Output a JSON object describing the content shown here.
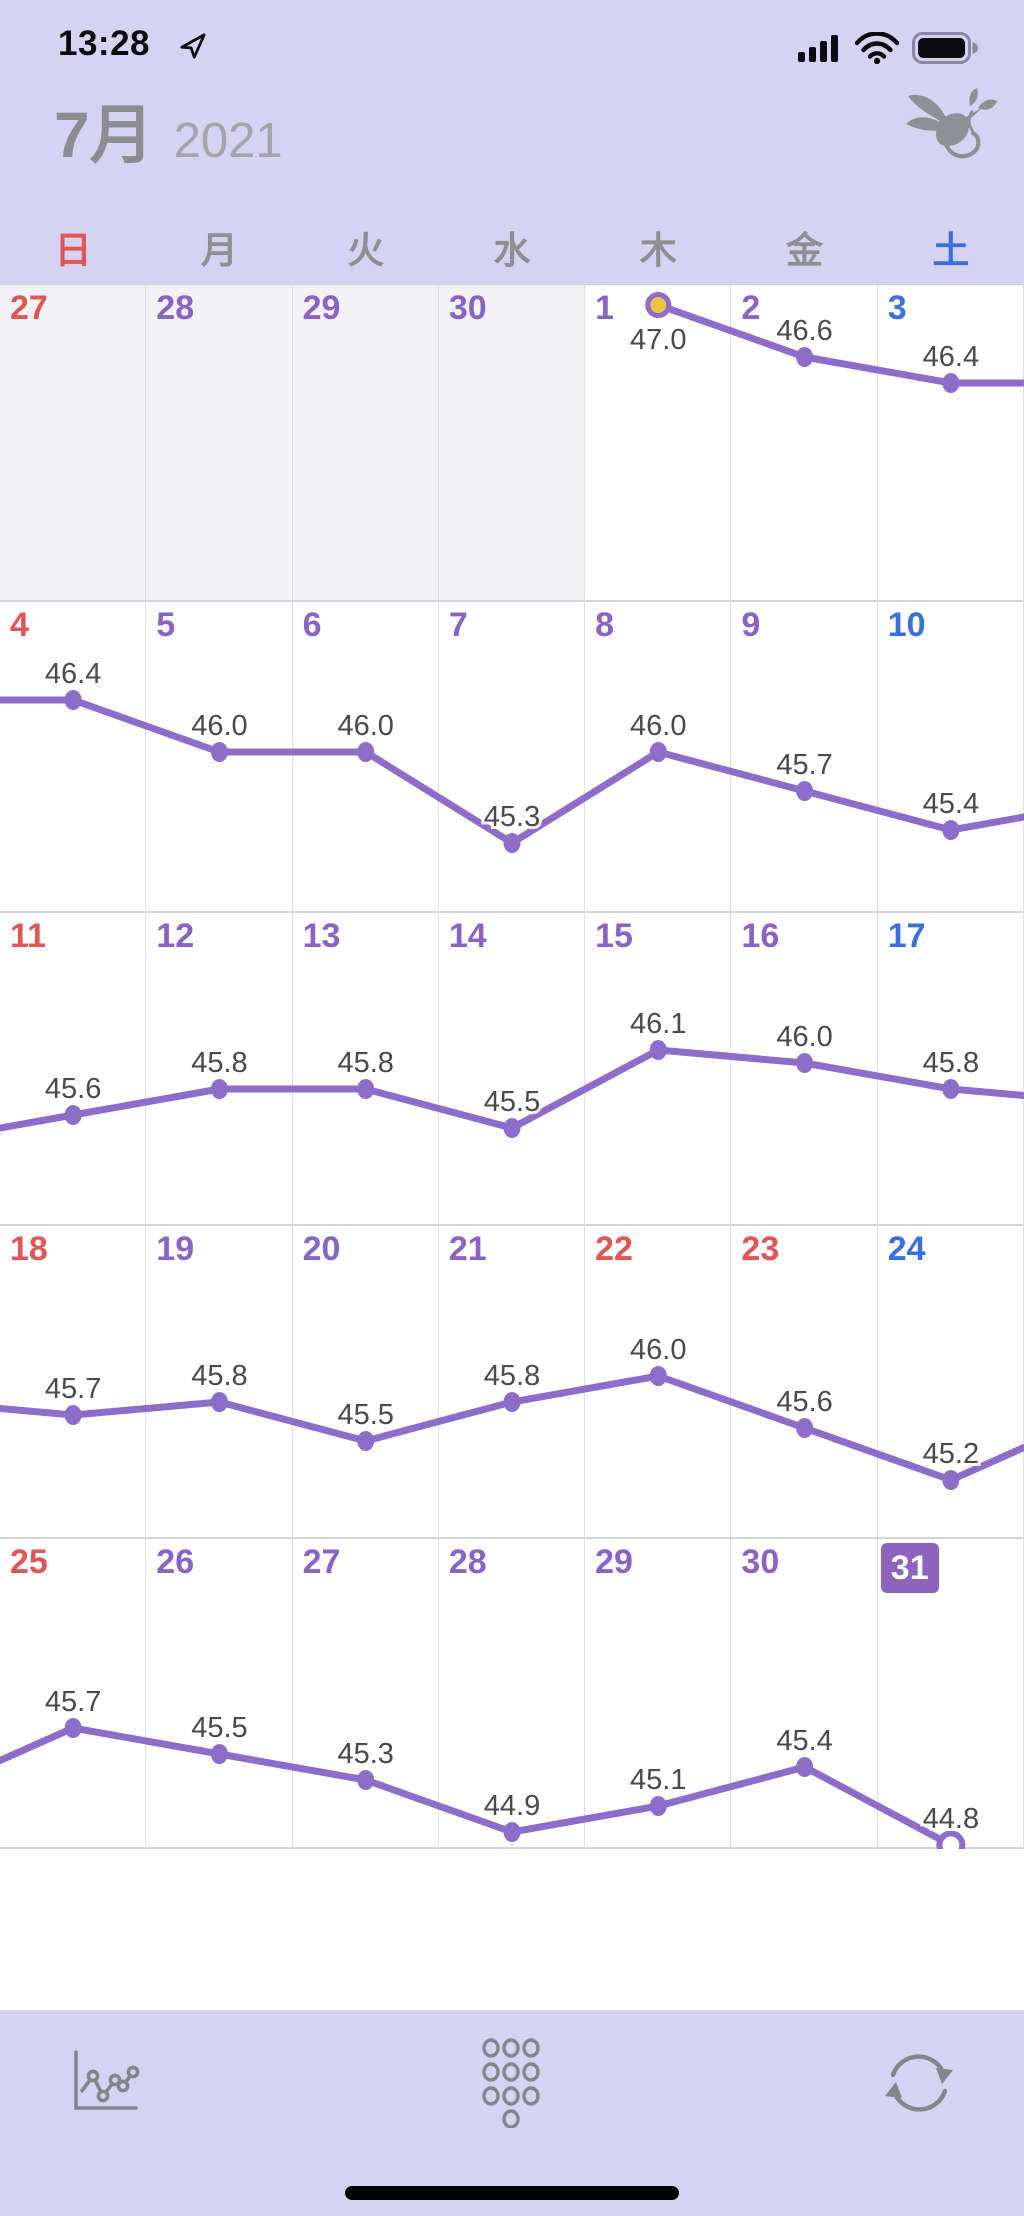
{
  "status_bar": {
    "time": "13:28"
  },
  "header": {
    "month": "7月",
    "year": "2021"
  },
  "weekday_header": [
    "日",
    "月",
    "火",
    "水",
    "木",
    "金",
    "土"
  ],
  "calendar": {
    "weeks": [
      [
        {
          "day": 27,
          "prev_month": true
        },
        {
          "day": 28,
          "prev_month": true
        },
        {
          "day": 29,
          "prev_month": true
        },
        {
          "day": 30,
          "prev_month": true
        },
        {
          "day": 1
        },
        {
          "day": 2
        },
        {
          "day": 3
        }
      ],
      [
        {
          "day": 4
        },
        {
          "day": 5
        },
        {
          "day": 6
        },
        {
          "day": 7
        },
        {
          "day": 8
        },
        {
          "day": 9
        },
        {
          "day": 10
        }
      ],
      [
        {
          "day": 11
        },
        {
          "day": 12
        },
        {
          "day": 13
        },
        {
          "day": 14
        },
        {
          "day": 15
        },
        {
          "day": 16
        },
        {
          "day": 17
        }
      ],
      [
        {
          "day": 18
        },
        {
          "day": 19
        },
        {
          "day": 20
        },
        {
          "day": 21
        },
        {
          "day": 22,
          "holiday": true
        },
        {
          "day": 23,
          "holiday": true
        },
        {
          "day": 24
        }
      ],
      [
        {
          "day": 25
        },
        {
          "day": 26
        },
        {
          "day": 27
        },
        {
          "day": 28
        },
        {
          "day": 29
        },
        {
          "day": 30
        },
        {
          "day": 31,
          "today": true
        }
      ]
    ]
  },
  "chart_data": {
    "type": "line",
    "title": "7月 2021",
    "x": [
      1,
      2,
      3,
      4,
      5,
      6,
      7,
      8,
      9,
      10,
      11,
      12,
      13,
      14,
      15,
      16,
      17,
      18,
      19,
      20,
      21,
      22,
      23,
      24,
      25,
      26,
      27,
      28,
      29,
      30,
      31
    ],
    "values": [
      47.0,
      46.6,
      46.4,
      46.4,
      46.0,
      46.0,
      45.3,
      46.0,
      45.7,
      45.4,
      45.6,
      45.8,
      45.8,
      45.5,
      46.1,
      46.0,
      45.8,
      45.7,
      45.8,
      45.5,
      45.8,
      46.0,
      45.6,
      45.2,
      45.7,
      45.5,
      45.3,
      44.9,
      45.1,
      45.4,
      44.8
    ],
    "value_labels_shown": true,
    "displayed_min": 44.8,
    "displayed_max": 47.0,
    "special_markers": {
      "day_1": "gold-highlight-ring",
      "day_31": "open-circle"
    },
    "legend": "none",
    "grid": "calendar-cells"
  },
  "colors": {
    "header_bg": "#d6d3f2",
    "toolbar_bg": "#d6d3f2",
    "line": "#8d6dca",
    "marker": "#8d6dca",
    "marker_gold": "#eec044",
    "weekday_purple": "#8a63c6",
    "sunday_red": "#e05555",
    "saturday_blue": "#3a6fe0",
    "weekday_header_gray": "#8e8e93",
    "value_label": "#4a4a4a",
    "today_badge_bg": "#8e63bd",
    "today_badge_text": "#ffffff",
    "out_month_bg": "#f3f3f5",
    "icon_gray": "#85858c"
  },
  "toolbar": {
    "buttons": [
      "chart-view",
      "keypad-input",
      "sync"
    ]
  }
}
